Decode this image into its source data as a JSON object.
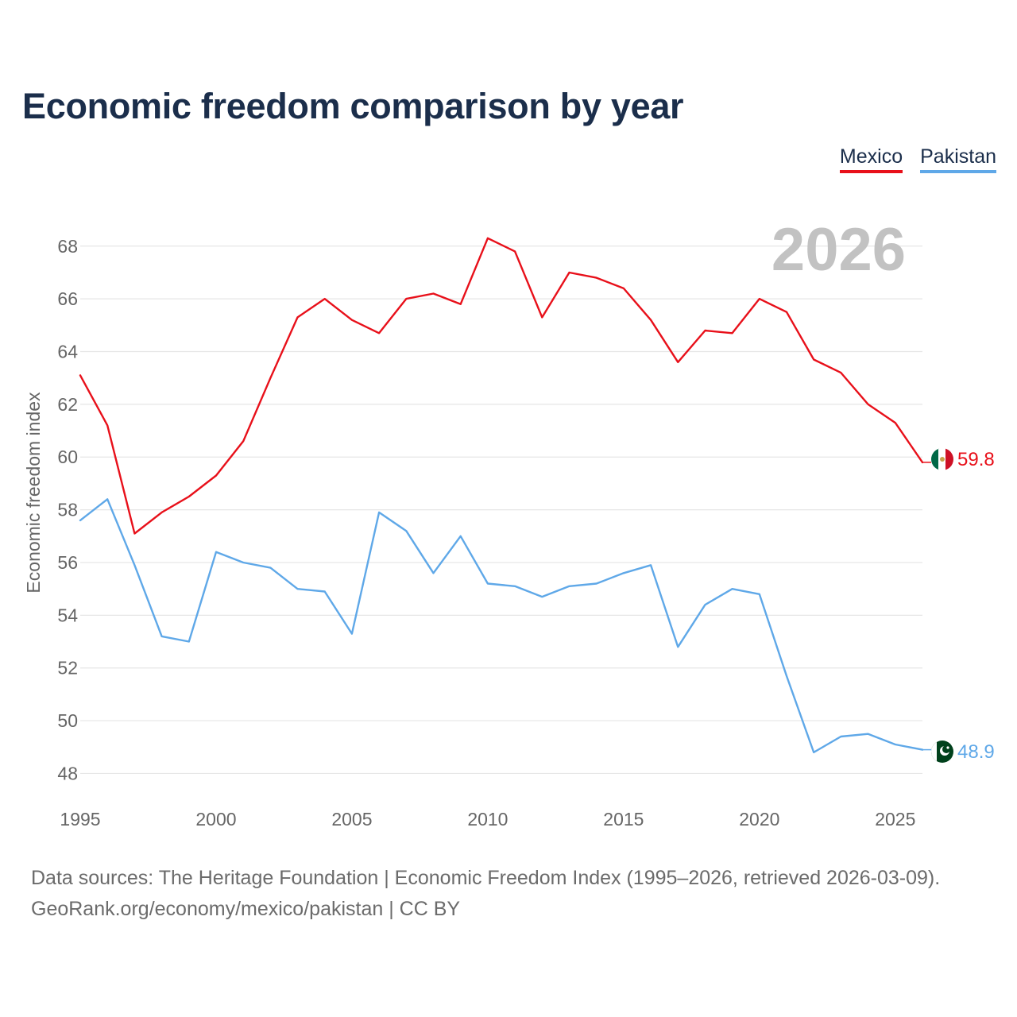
{
  "title": "Economic freedom comparison by year",
  "legend": [
    {
      "name": "Mexico",
      "color": "#e8101a"
    },
    {
      "name": "Pakistan",
      "color": "#5fa8e8"
    }
  ],
  "footer": {
    "line1": "Data sources: The Heritage Foundation | Economic Freedom Index (1995–2026, retrieved 2026-03-09).",
    "line2": "GeoRank.org/economy/mexico/pakistan | CC BY"
  },
  "chart_data": {
    "type": "line",
    "title": "Economic freedom comparison by year",
    "ylabel": "Economic freedom index",
    "xlabel": "",
    "watermark_year": "2026",
    "x": [
      1995,
      1996,
      1997,
      1998,
      1999,
      2000,
      2001,
      2002,
      2003,
      2004,
      2005,
      2006,
      2007,
      2008,
      2009,
      2010,
      2011,
      2012,
      2013,
      2014,
      2015,
      2016,
      2017,
      2018,
      2019,
      2020,
      2021,
      2022,
      2023,
      2024,
      2025,
      2026
    ],
    "xlim": [
      1995,
      2026
    ],
    "ylim": [
      47.2,
      69.5
    ],
    "xticks": [
      1995,
      2000,
      2005,
      2010,
      2015,
      2020,
      2025
    ],
    "yticks": [
      48,
      50,
      52,
      54,
      56,
      58,
      60,
      62,
      64,
      66,
      68
    ],
    "series": [
      {
        "name": "Mexico",
        "color": "#e8101a",
        "end_label": "59.8",
        "values": [
          63.1,
          61.2,
          57.1,
          57.9,
          58.5,
          59.3,
          60.6,
          63.0,
          65.3,
          66.0,
          65.2,
          64.7,
          66.0,
          66.2,
          65.8,
          68.3,
          67.8,
          65.3,
          67.0,
          66.8,
          66.4,
          65.2,
          63.6,
          64.8,
          64.7,
          66.0,
          65.5,
          63.7,
          63.2,
          62.0,
          61.3,
          59.8
        ]
      },
      {
        "name": "Pakistan",
        "color": "#5fa8e8",
        "end_label": "48.9",
        "values": [
          57.6,
          58.4,
          55.9,
          53.2,
          53.0,
          56.4,
          56.0,
          55.8,
          55.0,
          54.9,
          53.3,
          57.9,
          57.2,
          55.6,
          57.0,
          55.2,
          55.1,
          54.7,
          55.1,
          55.2,
          55.6,
          55.9,
          52.8,
          54.4,
          55.0,
          54.8,
          51.7,
          48.8,
          49.4,
          49.5,
          49.1,
          48.9
        ]
      }
    ]
  }
}
